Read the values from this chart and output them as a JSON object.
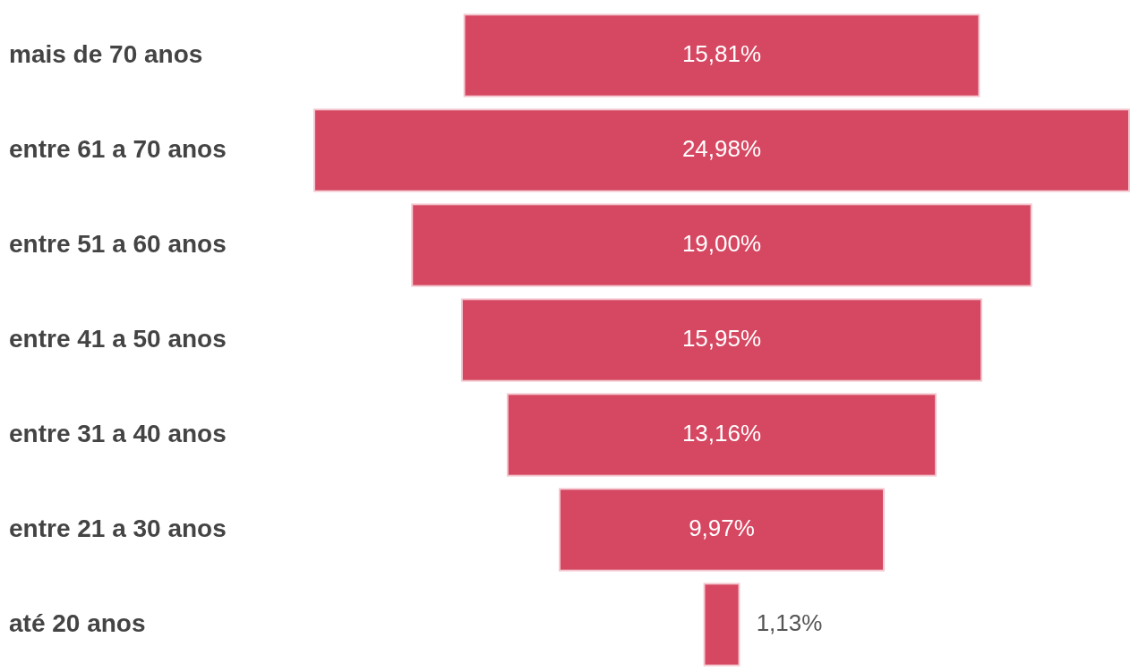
{
  "chart_data": {
    "type": "other",
    "categories": [
      "mais de 70 anos",
      "entre 61 a 70 anos",
      "entre 51 a 60 anos",
      "entre 41 a 50 anos",
      "entre 31 a 40 anos",
      "entre 21 a 30 anos",
      "até 20 anos"
    ],
    "values": [
      15.81,
      24.98,
      19.0,
      15.95,
      13.16,
      9.97,
      1.13
    ],
    "value_labels": [
      "15,81%",
      "24,98%",
      "19,00%",
      "15,95%",
      "13,16%",
      "9,97%",
      "1,13%"
    ],
    "color": "#d64862",
    "legend": false
  }
}
